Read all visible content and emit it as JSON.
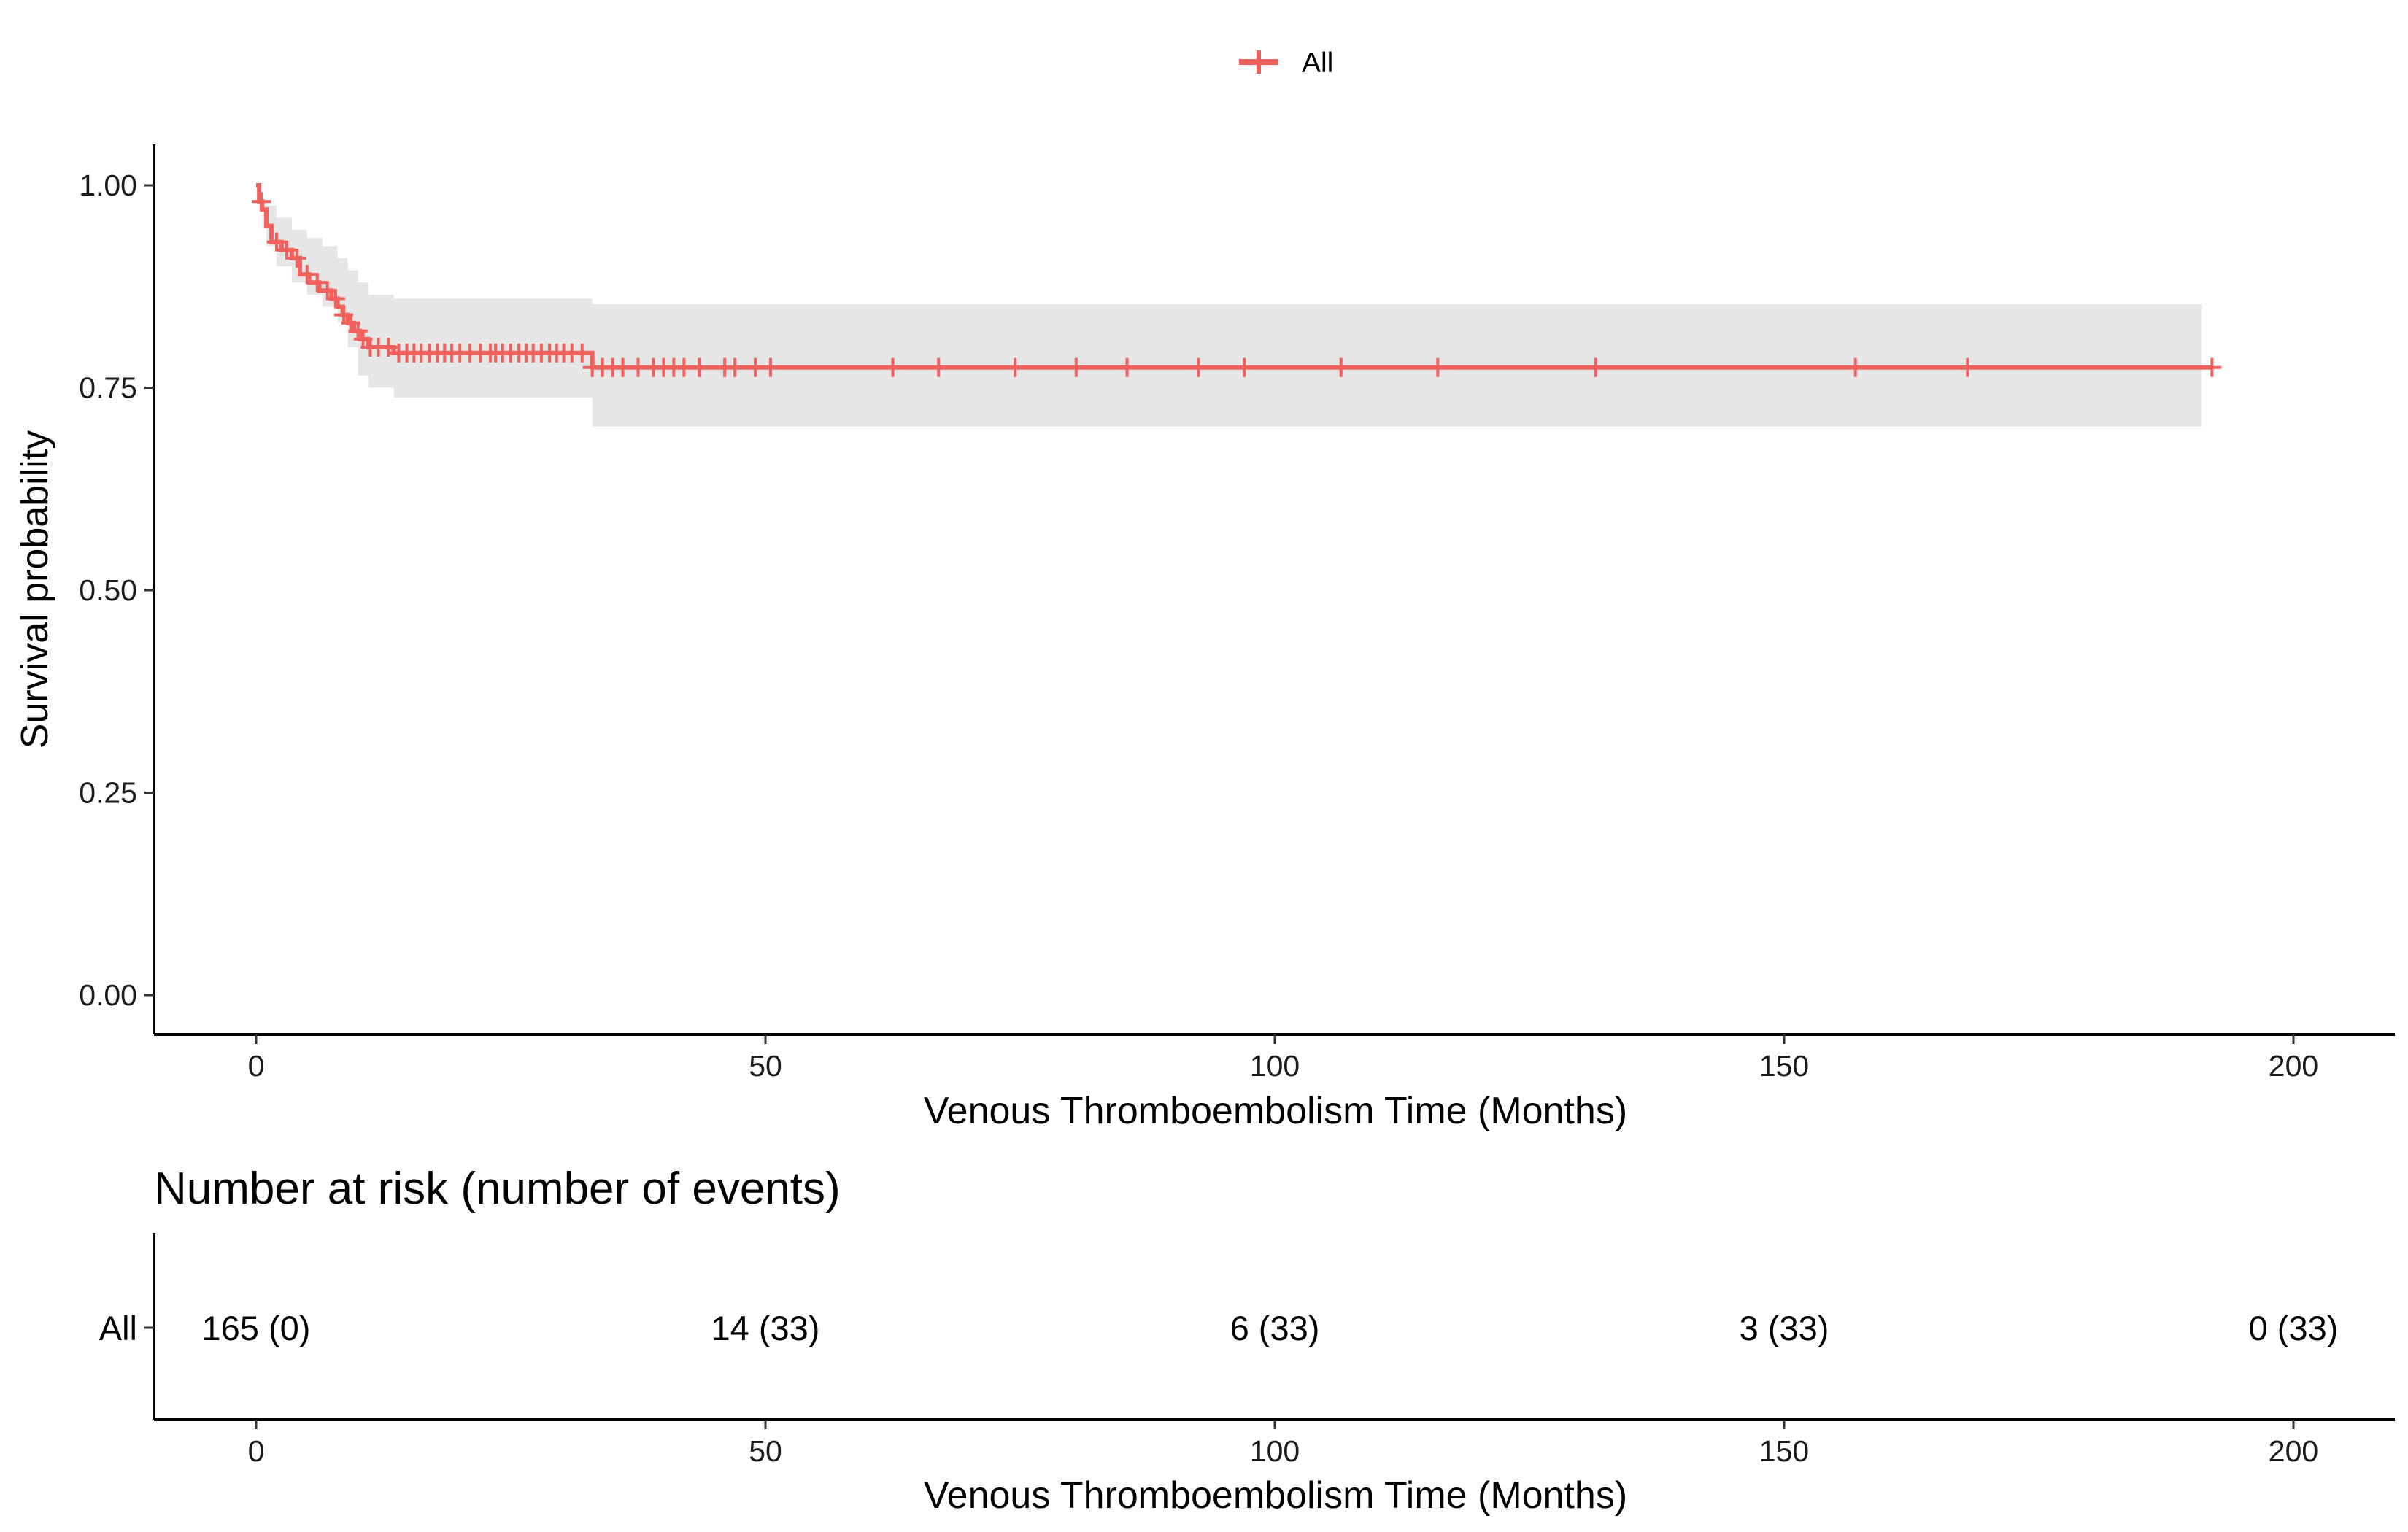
{
  "chart_data": [
    {
      "type": "line",
      "subtype": "kaplan-meier",
      "legend": {
        "position": "top",
        "entries": [
          "All"
        ]
      },
      "series": [
        {
          "name": "All",
          "color": "#f0605d",
          "steps": [
            [
              0,
              1.0
            ],
            [
              0.3,
              0.98
            ],
            [
              0.6,
              0.97
            ],
            [
              1.0,
              0.95
            ],
            [
              1.5,
              0.93
            ],
            [
              2.5,
              0.92
            ],
            [
              3.5,
              0.91
            ],
            [
              4.3,
              0.89
            ],
            [
              5.2,
              0.88
            ],
            [
              6.2,
              0.87
            ],
            [
              7.4,
              0.86
            ],
            [
              8.0,
              0.85
            ],
            [
              8.5,
              0.84
            ],
            [
              9.0,
              0.83
            ],
            [
              9.6,
              0.82
            ],
            [
              10.2,
              0.81
            ],
            [
              11.0,
              0.8
            ],
            [
              13.5,
              0.793
            ],
            [
              33.0,
              0.775
            ],
            [
              192,
              0.775
            ]
          ],
          "ci_steps": [
            [
              0,
              1.0,
              1.0
            ],
            [
              1.0,
              0.925,
              0.975
            ],
            [
              2.0,
              0.9,
              0.96
            ],
            [
              3.5,
              0.88,
              0.945
            ],
            [
              5.0,
              0.865,
              0.935
            ],
            [
              6.5,
              0.85,
              0.925
            ],
            [
              8.0,
              0.83,
              0.91
            ],
            [
              9.0,
              0.8,
              0.895
            ],
            [
              10.0,
              0.765,
              0.88
            ],
            [
              11.0,
              0.75,
              0.865
            ],
            [
              13.5,
              0.738,
              0.86
            ],
            [
              33.0,
              0.702,
              0.853
            ],
            [
              191,
              0.702,
              0.853
            ]
          ],
          "censored": [
            0.5,
            2.0,
            3.0,
            4.0,
            5.0,
            6.0,
            7.0,
            7.8,
            8.6,
            9.3,
            10.0,
            10.5,
            11.2,
            12.0,
            13.0,
            14.0,
            14.8,
            15.5,
            16.2,
            17.0,
            17.8,
            18.5,
            19.2,
            20.0,
            21.0,
            22.0,
            23.0,
            23.5,
            24.2,
            25.0,
            25.8,
            26.5,
            27.2,
            28.0,
            28.8,
            29.5,
            30.2,
            31.0,
            32.0,
            33.0,
            34.0,
            35.0,
            36.0,
            37.5,
            39.0,
            40.0,
            41.0,
            42.0,
            43.5,
            46.0,
            47.0,
            49.0,
            50.5,
            62.5,
            67.0,
            74.5,
            80.5,
            85.5,
            92.5,
            97.0,
            106.5,
            116.0,
            131.5,
            157.0,
            168.0,
            192.0
          ]
        }
      ],
      "x": {
        "label": "Venous Thromboembolism Time (Months)",
        "ticks": [
          0,
          50,
          100,
          150,
          200
        ],
        "lim": [
          -10,
          210
        ]
      },
      "y": {
        "label": "Survival probability",
        "ticks": [
          "0.00",
          "0.25",
          "0.50",
          "0.75",
          "1.00"
        ],
        "lim": [
          -0.05,
          1.05
        ]
      },
      "grid": false
    },
    {
      "type": "table",
      "title": "Number at risk (number of events)",
      "rows": [
        {
          "label": "All",
          "color": "#f0605d",
          "times": [
            0,
            50,
            100,
            150,
            200
          ],
          "values": [
            "165 (0)",
            "14 (33)",
            "6 (33)",
            "3 (33)",
            "0 (33)"
          ]
        }
      ],
      "x": {
        "label": "Venous Thromboembolism Time (Months)",
        "ticks": [
          0,
          50,
          100,
          150,
          200
        ]
      }
    }
  ]
}
